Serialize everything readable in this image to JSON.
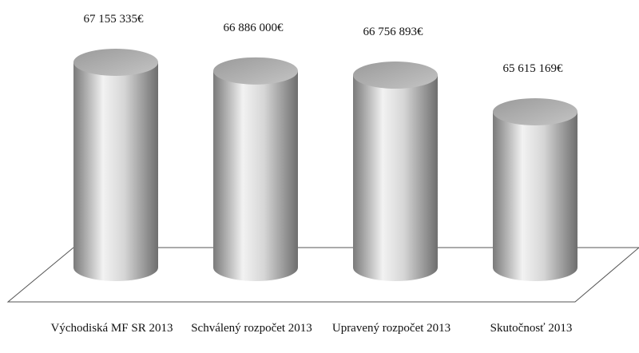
{
  "chart_data": {
    "type": "cylinder",
    "categories": [
      "Východiská MF SR 2013",
      "Schválený rozpočet 2013",
      "Upravený rozpočet 2013",
      "Skutočnosť 2013"
    ],
    "values": [
      67155335,
      66886000,
      66756893,
      65615169
    ],
    "value_labels": [
      "67 155 335€",
      "66 886 000€",
      "66 756 893€",
      "65 615 169€"
    ],
    "color": "#b0b0b0"
  }
}
